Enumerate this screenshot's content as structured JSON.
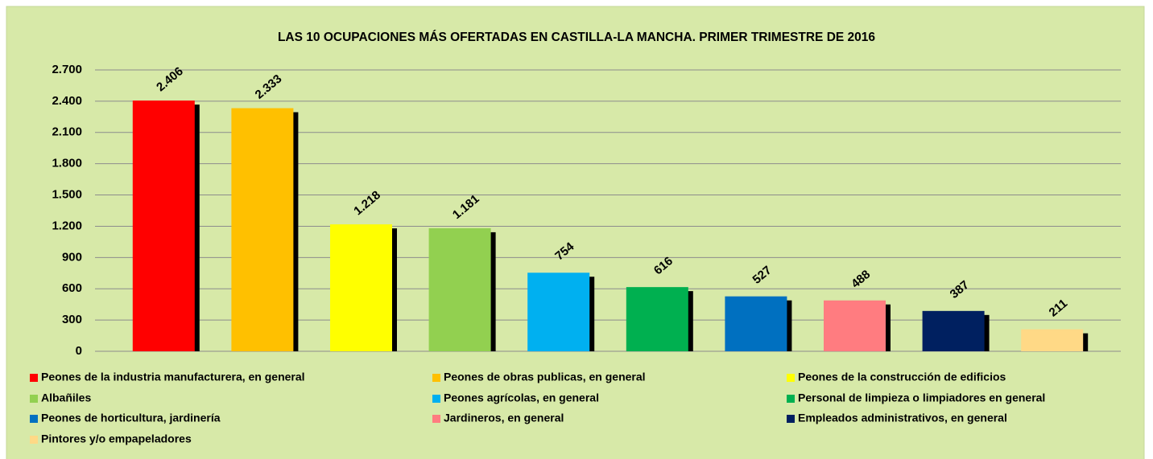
{
  "chart_data": {
    "type": "bar",
    "title": "LAS 10 OCUPACIONES MÁS OFERTADAS EN CASTILLA-LA MANCHA. PRIMER TRIMESTRE DE 2016",
    "categories": [
      "Peones de la industria manufacturera, en general",
      "Peones de obras publicas, en general",
      "Peones de la construcción de edificios",
      "Albañiles",
      "Peones agrícolas, en general",
      "Personal de limpieza o limpiadores en general",
      "Peones de horticultura, jardinería",
      "Jardineros, en general",
      "Empleados administrativos, en general",
      "Pintores y/o empapeladores"
    ],
    "values": [
      2406,
      2333,
      1218,
      1181,
      754,
      616,
      527,
      488,
      387,
      211
    ],
    "value_labels": [
      "2.406",
      "2.333",
      "1.218",
      "1.181",
      "754",
      "616",
      "527",
      "488",
      "387",
      "211"
    ],
    "colors": [
      "#ff0000",
      "#ffc000",
      "#ffff00",
      "#92d050",
      "#00b0f0",
      "#00b050",
      "#0070c0",
      "#ff7c80",
      "#002060",
      "#ffd986"
    ],
    "ylim": [
      0,
      2700
    ],
    "yticks": [
      0,
      {
        "value": 300,
        "label": "300"
      },
      {
        "value": 600,
        "label": "600"
      },
      {
        "value": 900,
        "label": "900"
      },
      {
        "value": 1200,
        "label": "1.200"
      },
      {
        "value": 1500,
        "label": "1.500"
      },
      {
        "value": 1800,
        "label": "1.800"
      },
      {
        "value": 2100,
        "label": "2.100"
      },
      {
        "value": 2400,
        "label": "2.400"
      },
      {
        "value": 2700,
        "label": "2.700"
      }
    ],
    "grid": true,
    "legend": "bottom"
  }
}
